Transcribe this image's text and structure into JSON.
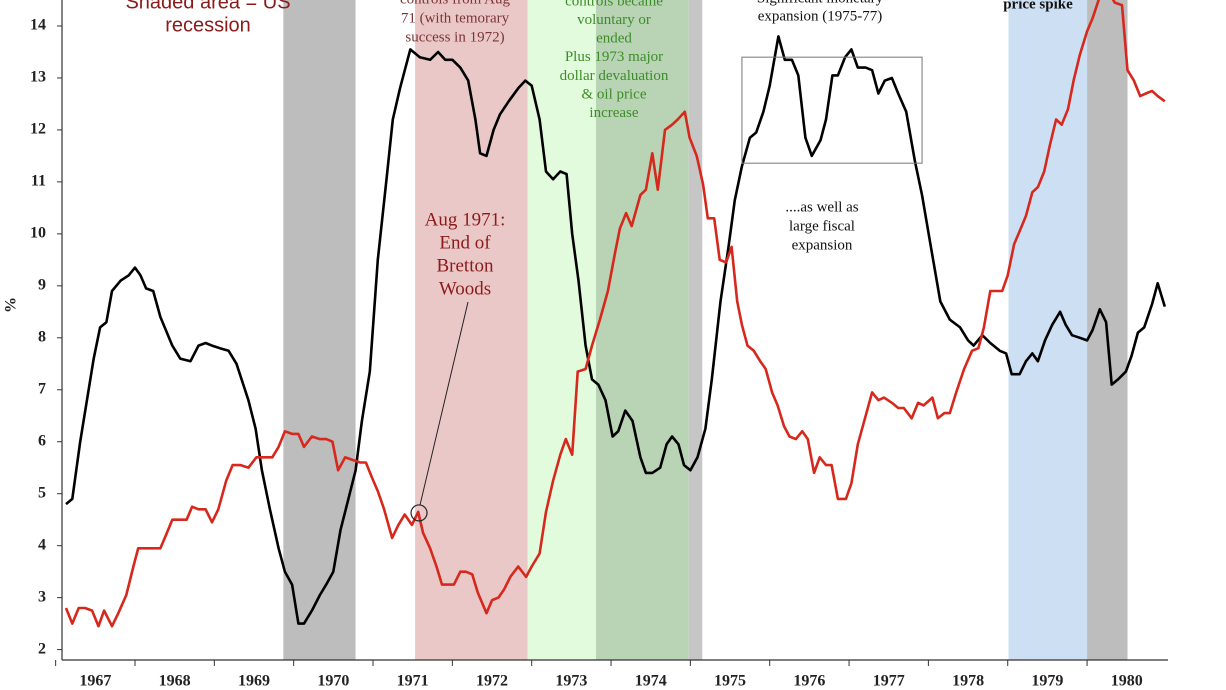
{
  "chart_data": {
    "type": "line",
    "ylabel": "%",
    "xlim": [
      1967.08,
      1981.02
    ],
    "ylim": [
      1.8,
      14.5
    ],
    "xticks": [
      1967,
      1968,
      1969,
      1970,
      1971,
      1972,
      1973,
      1974,
      1975,
      1976,
      1977,
      1978,
      1979,
      1980
    ],
    "yticks": [
      2,
      3,
      4,
      5,
      6,
      7,
      8,
      9,
      10,
      11,
      12,
      13,
      14
    ],
    "spans": [
      {
        "x": [
          1969.87,
          1970.78
        ],
        "color": "#bdbdbd"
      },
      {
        "x": [
          1971.53,
          1972.95
        ],
        "color": "#ebc8c8"
      },
      {
        "x": [
          1972.95,
          1973.81
        ],
        "color": "#e2fbdc"
      },
      {
        "x": [
          1973.81,
          1974.98
        ],
        "color": "#b9d4b5"
      },
      {
        "x": [
          1974.98,
          1975.15
        ],
        "color": "#c6c6c6"
      },
      {
        "x": [
          1979.01,
          1980.0
        ],
        "color": "#cddff2"
      },
      {
        "x": [
          1980.0,
          1980.51
        ],
        "color": "#bdbdbd"
      }
    ],
    "series": [
      {
        "color": "#000000",
        "x": [
          1967.13,
          1967.21,
          1967.31,
          1967.48,
          1967.56,
          1967.64,
          1967.71,
          1967.82,
          1967.92,
          1968.0,
          1968.07,
          1968.14,
          1968.23,
          1968.32,
          1968.47,
          1968.57,
          1968.7,
          1968.8,
          1968.89,
          1968.97,
          1969.07,
          1969.18,
          1969.28,
          1969.43,
          1969.52,
          1969.6,
          1969.7,
          1969.81,
          1969.89,
          1969.98,
          1970.06,
          1970.13,
          1970.23,
          1970.33,
          1970.41,
          1970.5,
          1970.59,
          1970.69,
          1970.78,
          1970.86,
          1970.96,
          1971.06,
          1971.17,
          1971.25,
          1971.34,
          1971.47,
          1971.59,
          1971.72,
          1971.82,
          1971.91,
          1972.0,
          1972.1,
          1972.2,
          1972.29,
          1972.35,
          1972.43,
          1972.52,
          1972.6,
          1972.71,
          1972.83,
          1972.92,
          1973.0,
          1973.1,
          1973.18,
          1973.27,
          1973.36,
          1973.44,
          1973.51,
          1973.59,
          1973.68,
          1973.76,
          1973.84,
          1973.93,
          1974.02,
          1974.09,
          1974.18,
          1974.27,
          1974.37,
          1974.44,
          1974.52,
          1974.62,
          1974.7,
          1974.77,
          1974.85,
          1974.92,
          1975.0,
          1975.09,
          1975.19,
          1975.27,
          1975.38,
          1975.48,
          1975.56,
          1975.65,
          1975.75,
          1975.83,
          1975.92,
          1976.0,
          1976.11,
          1976.19,
          1976.28,
          1976.36,
          1976.45,
          1976.53,
          1976.64,
          1976.71,
          1976.79,
          1976.86,
          1976.95,
          1977.03,
          1977.11,
          1977.21,
          1977.29,
          1977.37,
          1977.45,
          1977.54,
          1977.62,
          1977.72,
          1977.83,
          1977.92,
          1978.02,
          1978.15,
          1978.27,
          1978.4,
          1978.5,
          1978.57,
          1978.68,
          1978.78,
          1978.9,
          1978.98,
          1979.05,
          1979.15,
          1979.23,
          1979.31,
          1979.38,
          1979.47,
          1979.56,
          1979.66,
          1979.73,
          1979.81,
          1979.91,
          1980.0,
          1980.07,
          1980.16,
          1980.24,
          1980.31,
          1980.39,
          1980.49,
          1980.56,
          1980.64,
          1980.72,
          1980.82,
          1980.89,
          1980.98
        ],
        "values": [
          4.8,
          4.9,
          6.0,
          7.6,
          8.2,
          8.3,
          8.9,
          9.1,
          9.2,
          9.35,
          9.2,
          8.95,
          8.9,
          8.4,
          7.85,
          7.6,
          7.55,
          7.85,
          7.9,
          7.85,
          7.8,
          7.75,
          7.5,
          6.8,
          6.25,
          5.45,
          4.7,
          3.95,
          3.5,
          3.25,
          2.5,
          2.5,
          2.75,
          3.05,
          3.25,
          3.5,
          4.3,
          4.9,
          5.45,
          6.4,
          7.35,
          9.5,
          11.05,
          12.2,
          12.8,
          13.55,
          13.4,
          13.35,
          13.5,
          13.35,
          13.35,
          13.2,
          12.95,
          12.2,
          11.55,
          11.5,
          12.0,
          12.3,
          12.55,
          12.8,
          12.95,
          12.85,
          12.2,
          11.2,
          11.05,
          11.2,
          11.15,
          10.0,
          9.1,
          7.85,
          7.2,
          7.1,
          6.8,
          6.1,
          6.2,
          6.6,
          6.4,
          5.7,
          5.4,
          5.4,
          5.5,
          5.95,
          6.1,
          5.95,
          5.55,
          5.45,
          5.7,
          6.25,
          7.2,
          8.7,
          9.75,
          10.65,
          11.3,
          11.85,
          11.95,
          12.35,
          12.85,
          13.8,
          13.35,
          13.35,
          13.05,
          11.85,
          11.5,
          11.8,
          12.2,
          13.05,
          13.05,
          13.4,
          13.55,
          13.2,
          13.2,
          13.15,
          12.7,
          12.95,
          13.0,
          12.7,
          12.35,
          11.4,
          10.75,
          9.85,
          8.7,
          8.35,
          8.2,
          7.95,
          7.85,
          8.05,
          7.9,
          7.75,
          7.7,
          7.3,
          7.3,
          7.55,
          7.7,
          7.55,
          7.95,
          8.25,
          8.5,
          8.25,
          8.05,
          8.0,
          7.95,
          8.15,
          8.55,
          8.3,
          7.1,
          7.2,
          7.35,
          7.65,
          8.1,
          8.2,
          8.65,
          9.05,
          8.6
        ]
      },
      {
        "color": "#d6281c",
        "x": [
          1967.13,
          1967.21,
          1967.29,
          1967.37,
          1967.46,
          1967.54,
          1967.61,
          1967.71,
          1967.79,
          1967.89,
          1967.98,
          1968.04,
          1968.14,
          1968.26,
          1968.32,
          1968.39,
          1968.47,
          1968.57,
          1968.65,
          1968.72,
          1968.8,
          1968.89,
          1968.97,
          1969.05,
          1969.15,
          1969.23,
          1969.33,
          1969.43,
          1969.53,
          1969.63,
          1969.73,
          1969.81,
          1969.89,
          1969.98,
          1970.06,
          1970.13,
          1970.23,
          1970.33,
          1970.41,
          1970.49,
          1970.56,
          1970.65,
          1970.74,
          1970.84,
          1970.91,
          1970.99,
          1971.06,
          1971.14,
          1971.24,
          1971.32,
          1971.4,
          1971.49,
          1971.57,
          1971.63,
          1971.72,
          1971.8,
          1971.87,
          1971.95,
          1972.02,
          1972.1,
          1972.17,
          1972.25,
          1972.32,
          1972.43,
          1972.5,
          1972.58,
          1972.65,
          1972.73,
          1972.83,
          1972.93,
          1973.0,
          1973.1,
          1973.18,
          1973.27,
          1973.36,
          1973.43,
          1973.51,
          1973.58,
          1973.68,
          1973.76,
          1973.86,
          1973.96,
          1974.04,
          1974.11,
          1974.19,
          1974.26,
          1974.37,
          1974.44,
          1974.52,
          1974.59,
          1974.68,
          1974.77,
          1974.84,
          1974.93,
          1974.99,
          1975.08,
          1975.16,
          1975.22,
          1975.3,
          1975.37,
          1975.45,
          1975.52,
          1975.59,
          1975.65,
          1975.72,
          1975.8,
          1975.88,
          1975.95,
          1976.03,
          1976.1,
          1976.18,
          1976.25,
          1976.33,
          1976.41,
          1976.48,
          1976.56,
          1976.63,
          1976.71,
          1976.78,
          1976.86,
          1976.96,
          1977.03,
          1977.11,
          1977.21,
          1977.29,
          1977.37,
          1977.44,
          1977.54,
          1977.62,
          1977.69,
          1977.79,
          1977.87,
          1977.94,
          1978.05,
          1978.12,
          1978.2,
          1978.27,
          1978.35,
          1978.45,
          1978.55,
          1978.63,
          1978.7,
          1978.78,
          1978.85,
          1978.93,
          1979.0,
          1979.08,
          1979.15,
          1979.23,
          1979.31,
          1979.38,
          1979.46,
          1979.53,
          1979.61,
          1979.68,
          1979.76,
          1979.83,
          1979.91,
          1980.0,
          1980.07,
          1980.19,
          1980.29,
          1980.35,
          1980.44,
          1980.51,
          1980.59,
          1980.67,
          1980.74,
          1980.82,
          1980.89,
          1980.98
        ],
        "values": [
          2.8,
          2.5,
          2.8,
          2.8,
          2.75,
          2.45,
          2.75,
          2.45,
          2.7,
          3.05,
          3.6,
          3.95,
          3.95,
          3.95,
          3.95,
          4.2,
          4.5,
          4.5,
          4.5,
          4.75,
          4.7,
          4.7,
          4.45,
          4.7,
          5.25,
          5.55,
          5.55,
          5.5,
          5.7,
          5.7,
          5.7,
          5.9,
          6.2,
          6.15,
          6.15,
          5.9,
          6.1,
          6.05,
          6.05,
          6.0,
          5.45,
          5.7,
          5.65,
          5.6,
          5.6,
          5.3,
          5.05,
          4.7,
          4.15,
          4.4,
          4.6,
          4.4,
          4.65,
          4.25,
          3.95,
          3.6,
          3.25,
          3.25,
          3.25,
          3.5,
          3.5,
          3.45,
          3.1,
          2.7,
          2.95,
          3.0,
          3.15,
          3.4,
          3.6,
          3.4,
          3.6,
          3.85,
          4.65,
          5.25,
          5.75,
          6.05,
          5.75,
          7.35,
          7.4,
          7.85,
          8.35,
          8.9,
          9.55,
          10.1,
          10.4,
          10.15,
          10.75,
          10.85,
          11.55,
          10.85,
          12.0,
          12.1,
          12.2,
          12.35,
          11.85,
          11.5,
          10.95,
          10.3,
          10.3,
          9.5,
          9.45,
          9.75,
          8.7,
          8.25,
          7.85,
          7.75,
          7.55,
          7.4,
          6.95,
          6.7,
          6.3,
          6.1,
          6.05,
          6.2,
          6.05,
          5.4,
          5.7,
          5.55,
          5.55,
          4.9,
          4.9,
          5.2,
          5.95,
          6.5,
          6.95,
          6.8,
          6.85,
          6.75,
          6.65,
          6.65,
          6.45,
          6.75,
          6.7,
          6.85,
          6.45,
          6.55,
          6.55,
          6.95,
          7.4,
          7.75,
          7.8,
          8.2,
          8.9,
          8.9,
          8.9,
          9.2,
          9.8,
          10.05,
          10.35,
          10.8,
          10.9,
          11.2,
          11.7,
          12.2,
          12.1,
          12.4,
          12.95,
          13.45,
          13.9,
          14.15,
          14.7,
          14.6,
          14.45,
          14.4,
          13.15,
          12.95,
          12.65,
          12.7,
          12.75,
          12.65,
          12.55
        ]
      }
    ],
    "box": {
      "x": [
        1975.65,
        1977.92
      ],
      "y": [
        11.36,
        13.4
      ]
    },
    "point": {
      "x": 1971.58,
      "y": 4.63
    },
    "annotations": [
      {
        "lines": [
          "Shaded area = US",
          "recession"
        ],
        "color": "#8b1a1a"
      },
      {
        "lines": [
          "controls from Aug",
          "71 (with temorary",
          "success in 1972)"
        ],
        "color": "#7b3535"
      },
      {
        "lines": [
          "controls became",
          "voluntary or",
          "ended",
          "Plus 1973 major",
          "dollar devaluation",
          "& oil price",
          "increase"
        ],
        "color": "#3c8c28"
      },
      {
        "lines": [
          "Significant monetary",
          "expansion (1975-77)"
        ],
        "color": "#111111"
      },
      {
        "lines": [
          "price spike"
        ],
        "color": "#111111"
      },
      {
        "lines": [
          "....as well as",
          "large fiscal",
          "expansion"
        ],
        "color": "#111111"
      },
      {
        "lines": [
          "Aug 1971:",
          "End of",
          "Bretton",
          "Woods"
        ],
        "color": "#8b1a1a"
      }
    ]
  }
}
